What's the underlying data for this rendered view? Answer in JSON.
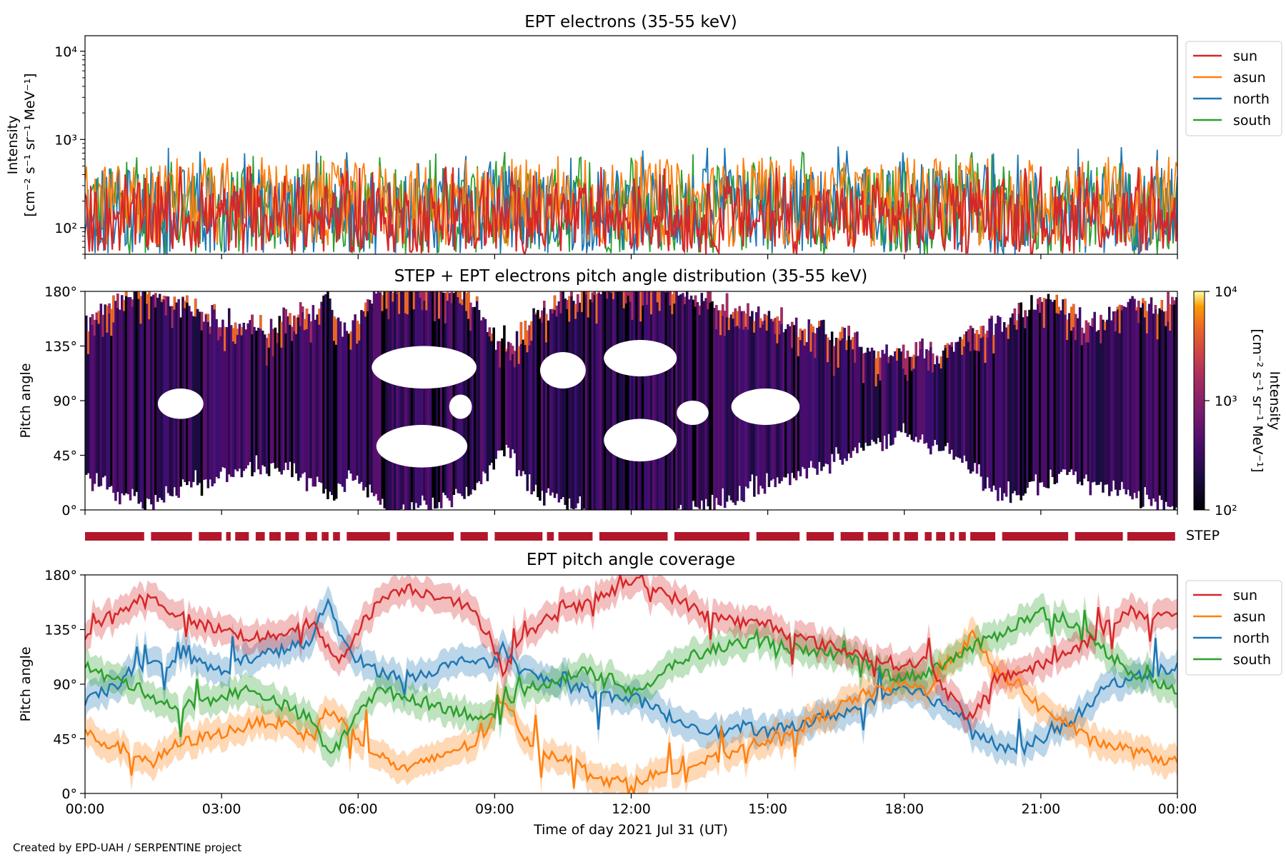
{
  "colors": {
    "sun": "#d62728",
    "asun": "#ff7f0e",
    "north": "#1f77b4",
    "south": "#2ca02c",
    "step_bar": "#b2182b"
  },
  "footer": {
    "credit": "Created by EPD-UAH / SERPENTINE project"
  },
  "chart_data": [
    {
      "id": "intensity",
      "type": "line",
      "title": "EPT electrons (35-55 keV)",
      "ylabel_line1": "Intensity",
      "ylabel_line2": "[cm⁻² s⁻¹ sr⁻¹ MeV⁻¹]",
      "yscale": "log",
      "ylim": [
        50,
        15000
      ],
      "yticks": [
        {
          "value": 100,
          "label": "10²"
        },
        {
          "value": 1000,
          "label": "10³"
        },
        {
          "value": 10000,
          "label": "10⁴"
        }
      ],
      "x_unit": "hours",
      "xlim": [
        0,
        24
      ],
      "legend": "right",
      "series": [
        {
          "name": "sun",
          "typical_range": [
            50,
            320
          ],
          "peak_max": 500
        },
        {
          "name": "asun",
          "typical_range": [
            60,
            550
          ],
          "peak_max": 650
        },
        {
          "name": "north",
          "typical_range": [
            50,
            480
          ],
          "peak_max": 850
        },
        {
          "name": "south",
          "typical_range": [
            50,
            500
          ],
          "peak_max": 730
        }
      ]
    },
    {
      "id": "pad",
      "type": "heatmap",
      "title": "STEP + EPT electrons pitch angle distribution (35-55 keV)",
      "ylabel": "Pitch angle",
      "ylim": [
        0,
        180
      ],
      "yticks": [
        {
          "value": 0,
          "label": "0°"
        },
        {
          "value": 45,
          "label": "45°"
        },
        {
          "value": 90,
          "label": "90°"
        },
        {
          "value": 135,
          "label": "135°"
        },
        {
          "value": 180,
          "label": "180°"
        }
      ],
      "xlim": [
        0,
        24
      ],
      "colorbar": {
        "label_line1": "Intensity",
        "label_line2": "[cm⁻² s⁻¹ sr⁻¹ MeV⁻¹]",
        "scale": "log",
        "range": [
          100,
          10000
        ],
        "ticks": [
          {
            "value": 100,
            "label": "10²"
          },
          {
            "value": 1000,
            "label": "10³"
          },
          {
            "value": 10000,
            "label": "10⁴"
          }
        ],
        "colormap": "inferno"
      }
    },
    {
      "id": "step",
      "type": "bar",
      "label": "STEP",
      "intervals": [
        [
          0,
          1.3
        ],
        [
          1.45,
          2.35
        ],
        [
          2.5,
          3.0
        ],
        [
          3.1,
          3.2
        ],
        [
          3.3,
          3.6
        ],
        [
          3.75,
          3.95
        ],
        [
          4.05,
          4.3
        ],
        [
          4.4,
          4.7
        ],
        [
          4.85,
          5.1
        ],
        [
          5.2,
          5.35
        ],
        [
          5.45,
          5.6
        ],
        [
          5.75,
          6.7
        ],
        [
          6.85,
          8.1
        ],
        [
          8.25,
          8.85
        ],
        [
          9.0,
          10.05
        ],
        [
          10.15,
          10.3
        ],
        [
          10.4,
          11.15
        ],
        [
          11.3,
          12.8
        ],
        [
          12.95,
          14.6
        ],
        [
          14.75,
          15.7
        ],
        [
          15.85,
          16.45
        ],
        [
          16.6,
          17.1
        ],
        [
          17.2,
          17.65
        ],
        [
          17.75,
          17.9
        ],
        [
          18.0,
          18.3
        ],
        [
          18.45,
          18.6
        ],
        [
          18.7,
          18.9
        ],
        [
          19.0,
          19.1
        ],
        [
          19.2,
          19.35
        ],
        [
          19.45,
          20.0
        ],
        [
          20.15,
          21.6
        ],
        [
          21.75,
          22.8
        ],
        [
          22.9,
          23.95
        ]
      ]
    },
    {
      "id": "coverage",
      "type": "line",
      "title": "EPT pitch angle coverage",
      "ylabel": "Pitch angle",
      "xlabel": "Time of day 2021 Jul 31 (UT)",
      "ylim": [
        0,
        180
      ],
      "yticks": [
        {
          "value": 0,
          "label": "0°"
        },
        {
          "value": 45,
          "label": "45°"
        },
        {
          "value": 90,
          "label": "90°"
        },
        {
          "value": 135,
          "label": "135°"
        },
        {
          "value": 180,
          "label": "180°"
        }
      ],
      "xlim": [
        0,
        24
      ],
      "xticks": [
        {
          "value": 0,
          "label": "00:00"
        },
        {
          "value": 3,
          "label": "03:00"
        },
        {
          "value": 6,
          "label": "06:00"
        },
        {
          "value": 9,
          "label": "09:00"
        },
        {
          "value": 12,
          "label": "12:00"
        },
        {
          "value": 15,
          "label": "15:00"
        },
        {
          "value": 18,
          "label": "18:00"
        },
        {
          "value": 21,
          "label": "21:00"
        },
        {
          "value": 24,
          "label": "00:00"
        }
      ],
      "legend": "right",
      "x": [
        0,
        0.5,
        1,
        1.5,
        2,
        2.5,
        3,
        3.5,
        4,
        4.5,
        5,
        5.3,
        5.6,
        6,
        6.5,
        7,
        7.5,
        8,
        8.5,
        8.9,
        9.2,
        9.6,
        10,
        10.5,
        11,
        11.5,
        12,
        12.5,
        13,
        13.5,
        14,
        14.5,
        15,
        15.5,
        16,
        16.5,
        17,
        17.5,
        18,
        18.5,
        19,
        19.5,
        20,
        20.5,
        21,
        21.5,
        22,
        22.5,
        23,
        23.5,
        24
      ],
      "series": [
        {
          "name": "sun",
          "values": [
            130,
            145,
            155,
            160,
            148,
            140,
            135,
            130,
            128,
            135,
            140,
            120,
            110,
            135,
            160,
            170,
            165,
            162,
            150,
            130,
            100,
            125,
            140,
            150,
            155,
            165,
            175,
            170,
            160,
            150,
            145,
            140,
            140,
            130,
            125,
            120,
            115,
            110,
            105,
            110,
            80,
            60,
            95,
            100,
            105,
            115,
            125,
            140,
            150,
            145,
            150
          ],
          "band_halfwidth": 12
        },
        {
          "name": "asun",
          "values": [
            50,
            40,
            35,
            25,
            40,
            45,
            50,
            55,
            60,
            55,
            45,
            70,
            60,
            45,
            30,
            20,
            25,
            35,
            40,
            55,
            80,
            50,
            35,
            30,
            20,
            10,
            10,
            15,
            20,
            25,
            30,
            40,
            45,
            50,
            60,
            70,
            80,
            85,
            90,
            85,
            110,
            130,
            100,
            90,
            70,
            60,
            45,
            40,
            35,
            30,
            25
          ],
          "band_halfwidth": 12
        },
        {
          "name": "north",
          "values": [
            75,
            85,
            100,
            105,
            110,
            108,
            100,
            110,
            115,
            120,
            125,
            160,
            130,
            110,
            100,
            95,
            100,
            105,
            110,
            105,
            120,
            100,
            95,
            90,
            85,
            80,
            80,
            70,
            60,
            55,
            50,
            55,
            50,
            55,
            60,
            65,
            70,
            80,
            90,
            80,
            70,
            55,
            40,
            35,
            45,
            55,
            70,
            90,
            95,
            100,
            105
          ],
          "band_halfwidth": 12
        },
        {
          "name": "south",
          "values": [
            105,
            95,
            90,
            80,
            70,
            75,
            80,
            85,
            80,
            70,
            60,
            35,
            40,
            70,
            85,
            80,
            75,
            70,
            65,
            60,
            70,
            85,
            90,
            95,
            100,
            95,
            85,
            90,
            110,
            115,
            120,
            125,
            125,
            120,
            115,
            115,
            110,
            100,
            95,
            100,
            110,
            120,
            130,
            140,
            150,
            145,
            130,
            115,
            100,
            90,
            85
          ],
          "band_halfwidth": 12
        }
      ]
    }
  ]
}
